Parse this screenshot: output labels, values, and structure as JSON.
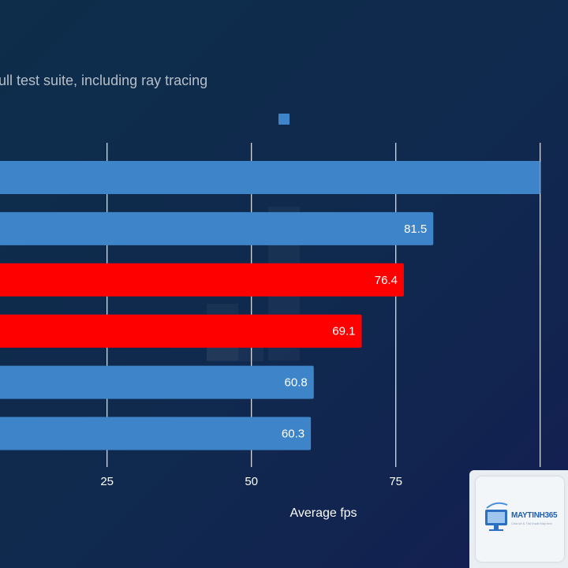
{
  "chart_data": {
    "type": "bar",
    "orientation": "horizontal",
    "subtitle": "ull test suite, including ray tracing",
    "xlabel": "Average fps",
    "xlim": [
      0,
      100
    ],
    "xticks": [
      "25",
      "50",
      "75",
      "100"
    ],
    "grid": true,
    "legend": "top-center",
    "values": [
      100,
      81.5,
      76.4,
      69.1,
      60.8,
      60.3
    ],
    "value_labels": [
      "",
      "81.5",
      "76.4",
      "69.1",
      "60.8",
      "60.3"
    ],
    "bar_colors": [
      "#3e84c8",
      "#3e84c8",
      "#ff0000",
      "#ff0000",
      "#3e84c8",
      "#3e84c8"
    ]
  },
  "colors": {
    "primary": "#3e84c8",
    "highlight": "#ff0000"
  },
  "watermark": {
    "brand": "MAYTINH365",
    "tagline": "Chia sẻ & Thủ thuật Máy tính"
  }
}
